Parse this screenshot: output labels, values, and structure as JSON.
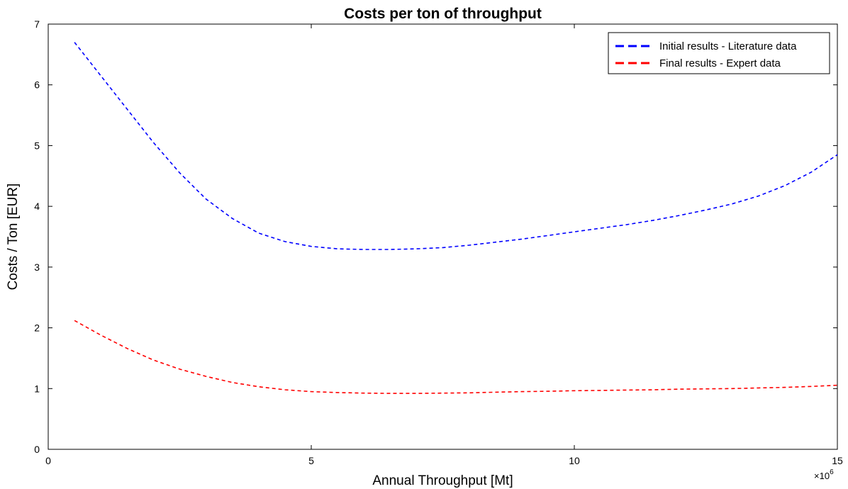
{
  "chart_data": {
    "type": "line",
    "title": "Costs per ton of throughput",
    "xlabel": "Annual Throughput [Mt]",
    "ylabel": "Costs / Ton [EUR]",
    "x_multiplier_label": "×10",
    "x_multiplier_exponent": "6",
    "xlim": [
      0,
      15
    ],
    "ylim": [
      0,
      7
    ],
    "x_ticks": [
      0,
      5,
      10,
      15
    ],
    "y_ticks": [
      0,
      1,
      2,
      3,
      4,
      5,
      6,
      7
    ],
    "grid": false,
    "legend_position": "top-right",
    "series": [
      {
        "name": "Initial results - Literature data",
        "color": "#0000ff",
        "style": "dashed",
        "x": [
          0.5,
          1,
          1.5,
          2,
          2.5,
          3,
          3.5,
          4,
          4.5,
          5,
          5.5,
          6,
          6.5,
          7,
          7.5,
          8,
          8.5,
          9,
          9.5,
          10,
          10.5,
          11,
          11.5,
          12,
          12.5,
          13,
          13.5,
          14,
          14.5,
          15
        ],
        "y": [
          6.7,
          6.15,
          5.6,
          5.05,
          4.55,
          4.12,
          3.8,
          3.56,
          3.42,
          3.34,
          3.3,
          3.29,
          3.29,
          3.3,
          3.32,
          3.36,
          3.41,
          3.46,
          3.52,
          3.58,
          3.64,
          3.7,
          3.77,
          3.85,
          3.94,
          4.04,
          4.17,
          4.34,
          4.56,
          4.85
        ]
      },
      {
        "name": "Final results - Expert data",
        "color": "#ff0000",
        "style": "dashed",
        "x": [
          0.5,
          1,
          1.5,
          2,
          2.5,
          3,
          3.5,
          4,
          4.5,
          5,
          5.5,
          6,
          6.5,
          7,
          7.5,
          8,
          8.5,
          9,
          9.5,
          10,
          10.5,
          11,
          11.5,
          12,
          12.5,
          13,
          13.5,
          14,
          14.5,
          15
        ],
        "y": [
          2.12,
          1.88,
          1.66,
          1.47,
          1.32,
          1.2,
          1.1,
          1.03,
          0.98,
          0.95,
          0.935,
          0.925,
          0.92,
          0.92,
          0.925,
          0.93,
          0.94,
          0.95,
          0.955,
          0.965,
          0.97,
          0.975,
          0.98,
          0.99,
          0.995,
          1.0,
          1.01,
          1.02,
          1.035,
          1.055
        ]
      }
    ]
  }
}
